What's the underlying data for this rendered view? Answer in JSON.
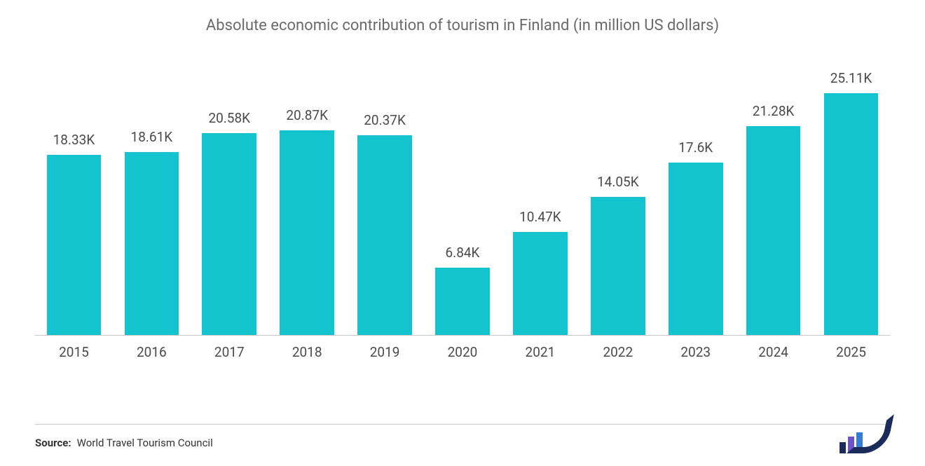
{
  "chart": {
    "type": "bar",
    "title": "Absolute economic contribution of tourism in Finland (in million US dollars)",
    "title_fontsize": 22,
    "title_color": "#6a6a6a",
    "categories": [
      "2015",
      "2016",
      "2017",
      "2018",
      "2019",
      "2020",
      "2021",
      "2022",
      "2023",
      "2024",
      "2025"
    ],
    "values": [
      18.33,
      18.61,
      20.58,
      20.87,
      20.37,
      6.84,
      10.47,
      14.05,
      17.6,
      21.28,
      25.11
    ],
    "value_labels": [
      "18.33K",
      "18.61K",
      "20.58K",
      "20.87K",
      "20.37K",
      "6.84K",
      "10.47K",
      "14.05K",
      "17.6K",
      "21.28K",
      "25.11K"
    ],
    "bar_color": "#13c3cd",
    "ymax": 27,
    "bar_width": 0.7,
    "background_color": "#ffffff",
    "axis_line_color": "#c8c8c8",
    "data_label_fontsize": 19,
    "data_label_color": "#4a4a4a",
    "x_label_fontsize": 19,
    "x_label_color": "#4a4a4a"
  },
  "footer": {
    "source_label": "Source:",
    "source_text": "World Travel Tourism Council",
    "label_fontsize": 15,
    "text_fontsize": 15,
    "text_color": "#333333",
    "divider_color": "#c8c8c8"
  },
  "logo": {
    "bar1_color": "#1b2b5a",
    "bar2_color": "#6f54c9",
    "bar3_color": "#357bd8",
    "swoosh_color": "#1b2b5a",
    "bar1_h": 16,
    "bar2_h": 24,
    "bar3_h": 30
  }
}
